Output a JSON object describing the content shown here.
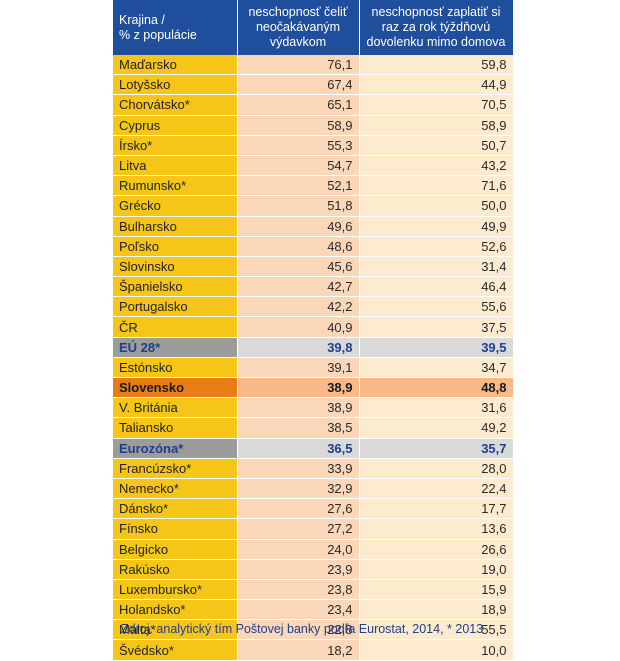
{
  "headers": {
    "col1_line1": "Krajina /",
    "col1_line2": "% z populácie",
    "col2": "neschopnosť čeliť neočakávaným výdavkom",
    "col3": "neschopnosť zaplatiť si raz za rok týždňovú dovolenku mimo domova"
  },
  "rows": [
    {
      "country": "Maďarsko",
      "v1": "76,1",
      "v2": "59,8",
      "type": "normal"
    },
    {
      "country": "Lotyšsko",
      "v1": "67,4",
      "v2": "44,9",
      "type": "normal"
    },
    {
      "country": "Chorvátsko*",
      "v1": "65,1",
      "v2": "70,5",
      "type": "normal"
    },
    {
      "country": "Cyprus",
      "v1": "58,9",
      "v2": "58,9",
      "type": "normal"
    },
    {
      "country": "Írsko*",
      "v1": "55,3",
      "v2": "50,7",
      "type": "normal"
    },
    {
      "country": "Litva",
      "v1": "54,7",
      "v2": "43,2",
      "type": "normal"
    },
    {
      "country": "Rumunsko*",
      "v1": "52,1",
      "v2": "71,6",
      "type": "normal"
    },
    {
      "country": "Grécko",
      "v1": "51,8",
      "v2": "50,0",
      "type": "normal"
    },
    {
      "country": "Bulharsko",
      "v1": "49,6",
      "v2": "49,9",
      "type": "normal"
    },
    {
      "country": "Poľsko",
      "v1": "48,6",
      "v2": "52,6",
      "type": "normal"
    },
    {
      "country": "Slovinsko",
      "v1": "45,6",
      "v2": "31,4",
      "type": "normal"
    },
    {
      "country": "Španielsko",
      "v1": "42,7",
      "v2": "46,4",
      "type": "normal"
    },
    {
      "country": "Portugalsko",
      "v1": "42,2",
      "v2": "55,6",
      "type": "normal"
    },
    {
      "country": "ČR",
      "v1": "40,9",
      "v2": "37,5",
      "type": "normal"
    },
    {
      "country": "EÚ 28*",
      "v1": "39,8",
      "v2": "39,5",
      "type": "agg"
    },
    {
      "country": "Estónsko",
      "v1": "39,1",
      "v2": "34,7",
      "type": "normal"
    },
    {
      "country": "Slovensko",
      "v1": "38,9",
      "v2": "48,8",
      "type": "hl"
    },
    {
      "country": "V. Británia",
      "v1": "38,9",
      "v2": "31,6",
      "type": "normal"
    },
    {
      "country": "Taliansko",
      "v1": "38,5",
      "v2": "49,2",
      "type": "normal"
    },
    {
      "country": "Eurozóna*",
      "v1": "36,5",
      "v2": "35,7",
      "type": "agg"
    },
    {
      "country": "Francúzsko*",
      "v1": "33,9",
      "v2": "28,0",
      "type": "normal"
    },
    {
      "country": "Nemecko*",
      "v1": "32,9",
      "v2": "22,4",
      "type": "normal"
    },
    {
      "country": "Dánsko*",
      "v1": "27,6",
      "v2": "17,7",
      "type": "normal"
    },
    {
      "country": "Fínsko",
      "v1": "27,2",
      "v2": "13,6",
      "type": "normal"
    },
    {
      "country": "Belgicko",
      "v1": "24,0",
      "v2": "26,6",
      "type": "normal"
    },
    {
      "country": "Rakúsko",
      "v1": "23,9",
      "v2": "19,0",
      "type": "normal"
    },
    {
      "country": "Luxembursko*",
      "v1": "23,8",
      "v2": "15,9",
      "type": "normal"
    },
    {
      "country": "Holandsko*",
      "v1": "23,4",
      "v2": "18,9",
      "type": "normal"
    },
    {
      "country": "Malta*",
      "v1": "22,8",
      "v2": "55,5",
      "type": "normal"
    },
    {
      "country": "Švédsko*",
      "v1": "18,2",
      "v2": "10,0",
      "type": "normal"
    }
  ],
  "source": "Zdroj: analytický tím Poštovej banky podľa Eurostat, 2014, * 2013",
  "colors": {
    "header_bg": "#1f4e9c",
    "country_bg": "#f5c518",
    "value1_bg": "#fad7b8",
    "value2_bg": "#fcebcf",
    "aggregate_bg": "#9c9c9c",
    "highlight_bg": "#e87d18",
    "accent_text": "#1f3e8c"
  }
}
